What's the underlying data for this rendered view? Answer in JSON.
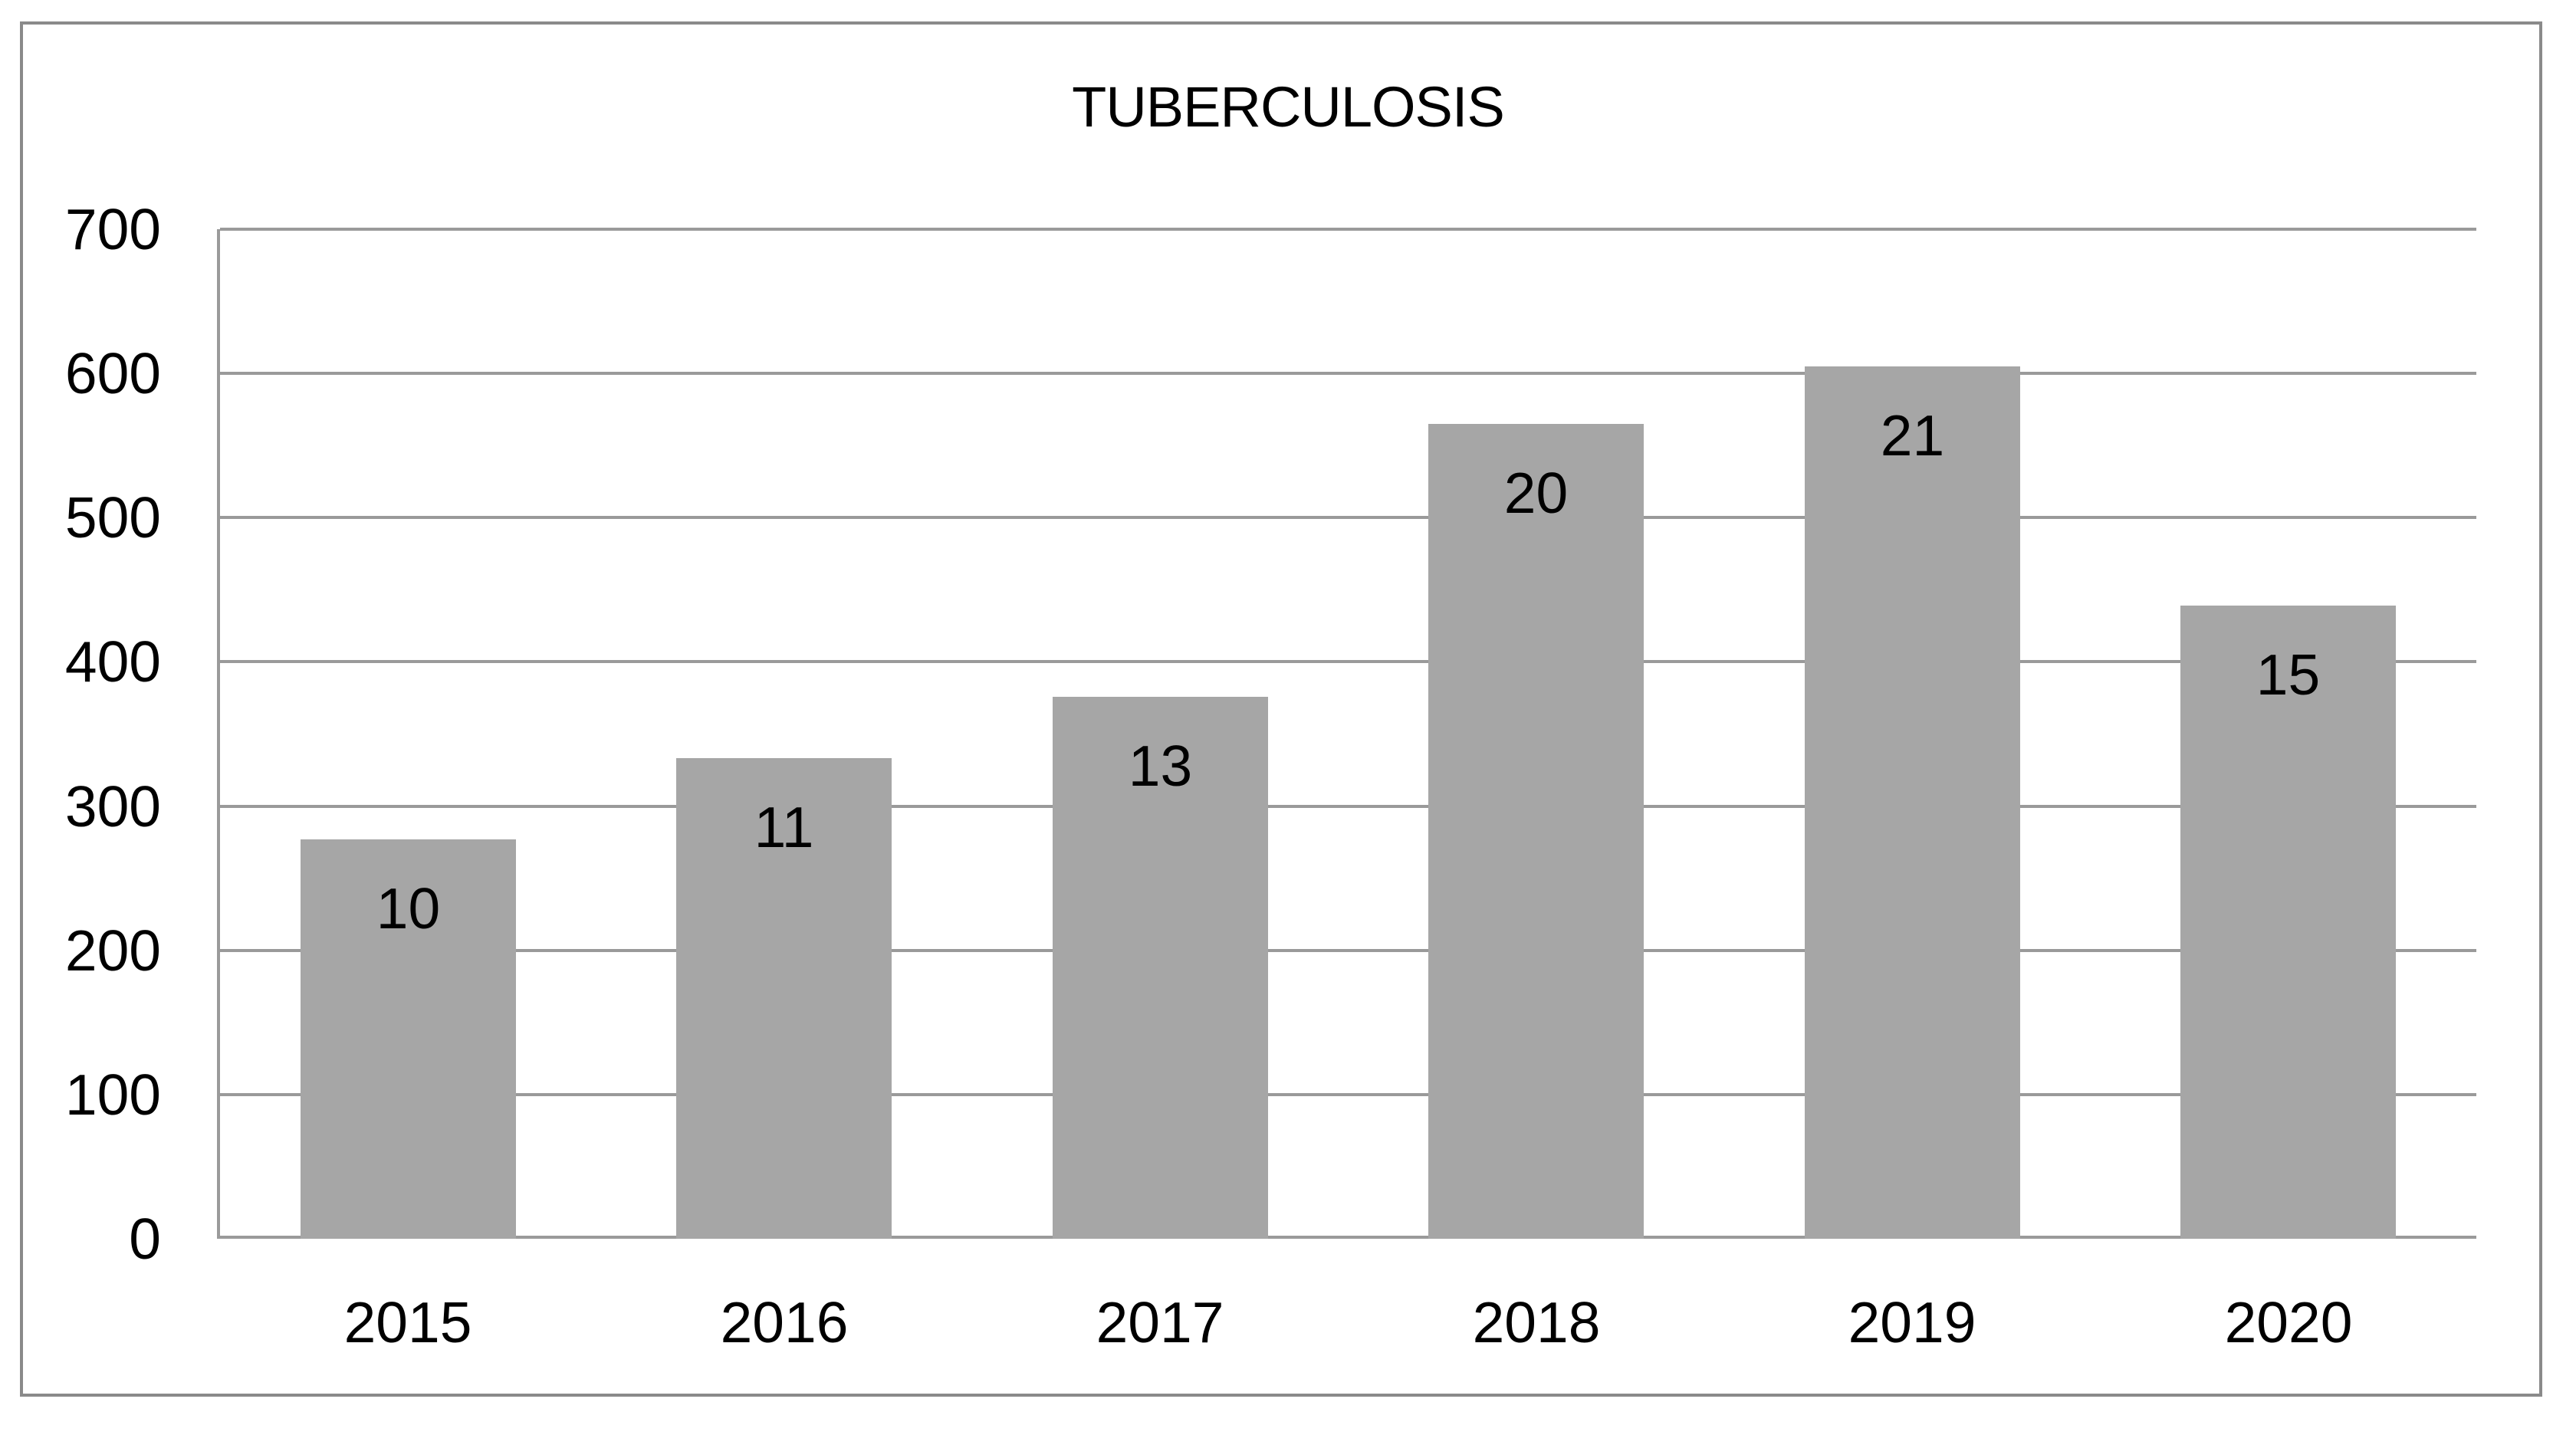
{
  "chart_data": {
    "type": "bar",
    "title": "TUBERCULOSIS",
    "categories": [
      "2015",
      "2016",
      "2017",
      "2018",
      "2019",
      "2020"
    ],
    "values": [
      277,
      333,
      376,
      565,
      605,
      439
    ],
    "bar_labels": [
      "10",
      "11",
      "13",
      "20",
      "21",
      "15"
    ],
    "xlabel": "",
    "ylabel": "",
    "ylim": [
      0,
      700
    ],
    "yticks": [
      0,
      100,
      200,
      300,
      400,
      500,
      600,
      700
    ],
    "grid": true,
    "legend": "none",
    "colors": {
      "bar_fill": "#a6a6a6",
      "gridline": "#9a9a9a",
      "axis_line": "#9a9a9a",
      "chart_border": "#8a8a8a",
      "text": "#000000",
      "background": "#ffffff"
    }
  }
}
